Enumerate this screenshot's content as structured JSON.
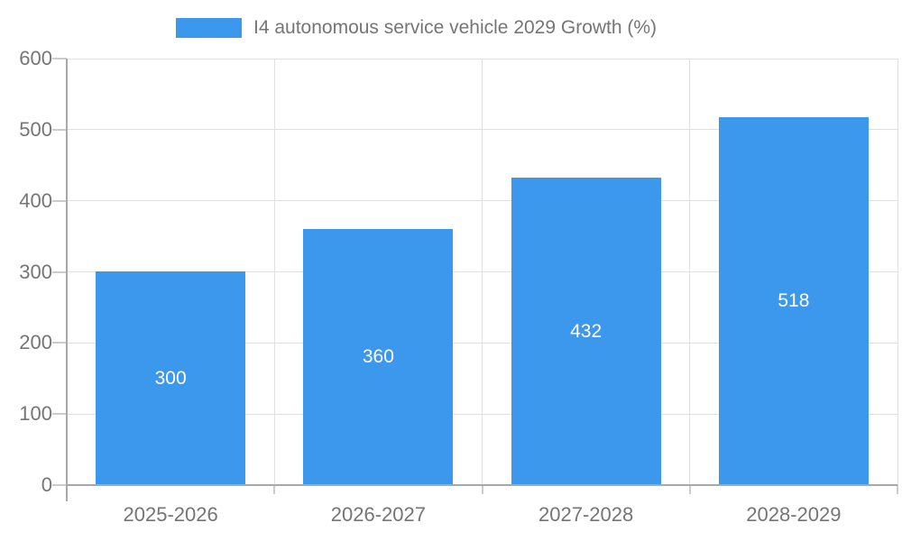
{
  "legend": {
    "label": "I4 autonomous service vehicle 2029 Growth (%)"
  },
  "chart_data": {
    "type": "bar",
    "title": "I4 autonomous service vehicle 2029 Growth (%)",
    "categories": [
      "2025-2026",
      "2026-2027",
      "2027-2028",
      "2028-2029"
    ],
    "values": [
      300,
      360,
      432,
      518
    ],
    "value_labels": [
      "300",
      "360",
      "432",
      "518"
    ],
    "xlabel": "",
    "ylabel": "",
    "ylim": [
      0,
      600
    ],
    "yticks": [
      0,
      100,
      200,
      300,
      400,
      500,
      600
    ],
    "grid": true,
    "legend_position": "top-center",
    "value_label_position": "inside-center"
  },
  "colors": {
    "bar": "#3B98EC",
    "axis_text": "#757575",
    "value_text": "#FFFFFF",
    "gridline": "#E0E0E0",
    "axis_line": "#A8A8A8",
    "tick": "#CCCCCC",
    "background": "#FFFFFF"
  }
}
